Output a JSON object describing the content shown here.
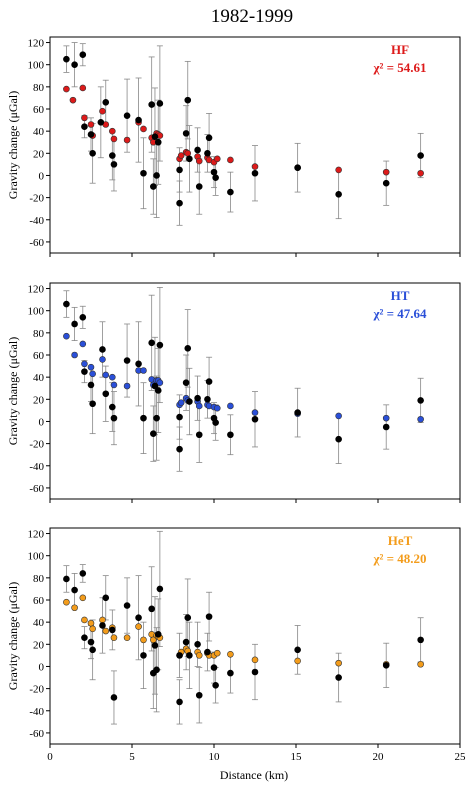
{
  "figure": {
    "title": "1982-1999",
    "xlabel": "Distance (km)",
    "ylabel": "Gravity change (μGal)",
    "xticks": [
      0,
      5,
      10,
      15,
      20,
      25
    ],
    "yticks": [
      -60,
      -40,
      -20,
      0,
      20,
      40,
      60,
      80,
      100,
      120
    ]
  },
  "chart_data": [
    {
      "type": "scatter",
      "panel": "HF",
      "model_label": "HF",
      "chi_label": "χ² = 54.61",
      "model_color": "#dd1a1a",
      "xlim": [
        0,
        25
      ],
      "ylim": [
        -70,
        125
      ],
      "xlabel": "",
      "ylabel": "Gravity change (μGal)",
      "grid": false,
      "observed": [
        {
          "x": 1.0,
          "y": 105,
          "err": 12
        },
        {
          "x": 1.5,
          "y": 100,
          "err": 20
        },
        {
          "x": 2.0,
          "y": 109,
          "err": 10
        },
        {
          "x": 2.1,
          "y": 44,
          "err": 10
        },
        {
          "x": 2.5,
          "y": 37,
          "err": 15
        },
        {
          "x": 2.6,
          "y": 20,
          "err": 27
        },
        {
          "x": 3.1,
          "y": 48,
          "err": 32
        },
        {
          "x": 3.4,
          "y": 66,
          "err": 20
        },
        {
          "x": 3.8,
          "y": 18,
          "err": 22
        },
        {
          "x": 3.9,
          "y": 10,
          "err": 24
        },
        {
          "x": 4.7,
          "y": 54,
          "err": 33
        },
        {
          "x": 5.4,
          "y": 50,
          "err": 38
        },
        {
          "x": 5.7,
          "y": 2,
          "err": 32
        },
        {
          "x": 6.2,
          "y": 64,
          "err": 43
        },
        {
          "x": 6.3,
          "y": -10,
          "err": 25
        },
        {
          "x": 6.4,
          "y": 35,
          "err": 44
        },
        {
          "x": 6.5,
          "y": 0,
          "err": 38
        },
        {
          "x": 6.6,
          "y": 30,
          "err": 38
        },
        {
          "x": 6.7,
          "y": 65,
          "err": 52
        },
        {
          "x": 7.9,
          "y": -25,
          "err": 20
        },
        {
          "x": 7.9,
          "y": 5,
          "err": 20
        },
        {
          "x": 8.3,
          "y": 38,
          "err": 25
        },
        {
          "x": 8.4,
          "y": 68,
          "err": 35
        },
        {
          "x": 8.5,
          "y": 15,
          "err": 30
        },
        {
          "x": 9.0,
          "y": 23,
          "err": 20
        },
        {
          "x": 9.1,
          "y": -10,
          "err": 25
        },
        {
          "x": 9.6,
          "y": 20,
          "err": 17
        },
        {
          "x": 9.7,
          "y": 34,
          "err": 22
        },
        {
          "x": 10.0,
          "y": 3,
          "err": 14
        },
        {
          "x": 10.1,
          "y": -2,
          "err": 16
        },
        {
          "x": 11.0,
          "y": -15,
          "err": 18
        },
        {
          "x": 12.5,
          "y": 2,
          "err": 25
        },
        {
          "x": 15.1,
          "y": 7,
          "err": 22
        },
        {
          "x": 17.6,
          "y": -17,
          "err": 22
        },
        {
          "x": 20.5,
          "y": -7,
          "err": 20
        },
        {
          "x": 22.6,
          "y": 18,
          "err": 20
        }
      ],
      "model": [
        {
          "x": 1.0,
          "y": 78
        },
        {
          "x": 1.4,
          "y": 68
        },
        {
          "x": 2.0,
          "y": 79
        },
        {
          "x": 2.1,
          "y": 52
        },
        {
          "x": 2.5,
          "y": 46
        },
        {
          "x": 2.6,
          "y": 36
        },
        {
          "x": 3.2,
          "y": 58
        },
        {
          "x": 3.4,
          "y": 46
        },
        {
          "x": 3.8,
          "y": 40
        },
        {
          "x": 3.9,
          "y": 33
        },
        {
          "x": 4.7,
          "y": 32
        },
        {
          "x": 5.4,
          "y": 48
        },
        {
          "x": 5.7,
          "y": 42
        },
        {
          "x": 6.2,
          "y": 34
        },
        {
          "x": 6.3,
          "y": 30
        },
        {
          "x": 6.5,
          "y": 38
        },
        {
          "x": 6.6,
          "y": 37
        },
        {
          "x": 6.7,
          "y": 36
        },
        {
          "x": 7.9,
          "y": 15
        },
        {
          "x": 8.0,
          "y": 18
        },
        {
          "x": 8.3,
          "y": 21
        },
        {
          "x": 8.4,
          "y": 20
        },
        {
          "x": 9.0,
          "y": 17
        },
        {
          "x": 9.1,
          "y": 13
        },
        {
          "x": 9.6,
          "y": 16
        },
        {
          "x": 9.7,
          "y": 14
        },
        {
          "x": 10.0,
          "y": 12
        },
        {
          "x": 10.2,
          "y": 15
        },
        {
          "x": 11.0,
          "y": 14
        },
        {
          "x": 12.5,
          "y": 8
        },
        {
          "x": 15.1,
          "y": 7
        },
        {
          "x": 17.6,
          "y": 5
        },
        {
          "x": 20.5,
          "y": 3
        },
        {
          "x": 22.6,
          "y": 2
        }
      ]
    },
    {
      "type": "scatter",
      "panel": "HT",
      "model_label": "HT",
      "chi_label": "χ² = 47.64",
      "model_color": "#2a4fd8",
      "xlim": [
        0,
        25
      ],
      "ylim": [
        -70,
        125
      ],
      "xlabel": "",
      "ylabel": "Gravity change (μGal)",
      "grid": false,
      "observed": [
        {
          "x": 1.0,
          "y": 106,
          "err": 12
        },
        {
          "x": 1.5,
          "y": 88,
          "err": 15
        },
        {
          "x": 2.0,
          "y": 94,
          "err": 10
        },
        {
          "x": 2.1,
          "y": 45,
          "err": 10
        },
        {
          "x": 2.5,
          "y": 33,
          "err": 15
        },
        {
          "x": 2.6,
          "y": 16,
          "err": 27
        },
        {
          "x": 3.2,
          "y": 65,
          "err": 25
        },
        {
          "x": 3.4,
          "y": 25,
          "err": 25
        },
        {
          "x": 3.8,
          "y": 13,
          "err": 22
        },
        {
          "x": 3.9,
          "y": 3,
          "err": 24
        },
        {
          "x": 4.7,
          "y": 55,
          "err": 33
        },
        {
          "x": 5.4,
          "y": 52,
          "err": 38
        },
        {
          "x": 5.7,
          "y": 3,
          "err": 32
        },
        {
          "x": 6.2,
          "y": 71,
          "err": 43
        },
        {
          "x": 6.3,
          "y": -11,
          "err": 25
        },
        {
          "x": 6.4,
          "y": 32,
          "err": 44
        },
        {
          "x": 6.5,
          "y": 3,
          "err": 38
        },
        {
          "x": 6.6,
          "y": 28,
          "err": 38
        },
        {
          "x": 6.7,
          "y": 69,
          "err": 52
        },
        {
          "x": 7.9,
          "y": -25,
          "err": 20
        },
        {
          "x": 7.9,
          "y": 4,
          "err": 20
        },
        {
          "x": 8.3,
          "y": 35,
          "err": 25
        },
        {
          "x": 8.4,
          "y": 66,
          "err": 35
        },
        {
          "x": 8.5,
          "y": 18,
          "err": 30
        },
        {
          "x": 9.0,
          "y": 21,
          "err": 20
        },
        {
          "x": 9.1,
          "y": -12,
          "err": 25
        },
        {
          "x": 9.6,
          "y": 20,
          "err": 17
        },
        {
          "x": 9.7,
          "y": 36,
          "err": 22
        },
        {
          "x": 10.0,
          "y": 3,
          "err": 14
        },
        {
          "x": 10.1,
          "y": -1,
          "err": 16
        },
        {
          "x": 11.0,
          "y": -12,
          "err": 18
        },
        {
          "x": 12.5,
          "y": 2,
          "err": 25
        },
        {
          "x": 15.1,
          "y": 8,
          "err": 22
        },
        {
          "x": 17.6,
          "y": -16,
          "err": 22
        },
        {
          "x": 20.5,
          "y": -5,
          "err": 20
        },
        {
          "x": 22.6,
          "y": 19,
          "err": 20
        }
      ],
      "model": [
        {
          "x": 1.0,
          "y": 77
        },
        {
          "x": 1.5,
          "y": 60
        },
        {
          "x": 2.0,
          "y": 70
        },
        {
          "x": 2.1,
          "y": 52
        },
        {
          "x": 2.5,
          "y": 49
        },
        {
          "x": 2.6,
          "y": 43
        },
        {
          "x": 3.2,
          "y": 56
        },
        {
          "x": 3.4,
          "y": 42
        },
        {
          "x": 3.8,
          "y": 40
        },
        {
          "x": 3.9,
          "y": 33
        },
        {
          "x": 4.7,
          "y": 32
        },
        {
          "x": 5.4,
          "y": 46
        },
        {
          "x": 5.7,
          "y": 46
        },
        {
          "x": 6.2,
          "y": 38
        },
        {
          "x": 6.3,
          "y": 33
        },
        {
          "x": 6.5,
          "y": 37
        },
        {
          "x": 6.6,
          "y": 37
        },
        {
          "x": 6.7,
          "y": 35
        },
        {
          "x": 7.9,
          "y": 15
        },
        {
          "x": 8.0,
          "y": 17
        },
        {
          "x": 8.3,
          "y": 21
        },
        {
          "x": 8.4,
          "y": 19
        },
        {
          "x": 9.0,
          "y": 18
        },
        {
          "x": 9.1,
          "y": 14
        },
        {
          "x": 9.6,
          "y": 15
        },
        {
          "x": 9.7,
          "y": 14
        },
        {
          "x": 10.0,
          "y": 13
        },
        {
          "x": 10.2,
          "y": 12
        },
        {
          "x": 11.0,
          "y": 14
        },
        {
          "x": 12.5,
          "y": 8
        },
        {
          "x": 15.1,
          "y": 7
        },
        {
          "x": 17.6,
          "y": 5
        },
        {
          "x": 20.5,
          "y": 3
        },
        {
          "x": 22.6,
          "y": 2
        }
      ]
    },
    {
      "type": "scatter",
      "panel": "HeT",
      "model_label": "HeT",
      "chi_label": "χ² = 48.20",
      "model_color": "#f39c1b",
      "xlim": [
        0,
        25
      ],
      "ylim": [
        -70,
        125
      ],
      "xlabel": "Distance (km)",
      "ylabel": "Gravity change (μGal)",
      "grid": false,
      "observed": [
        {
          "x": 1.0,
          "y": 79,
          "err": 12
        },
        {
          "x": 1.5,
          "y": 69,
          "err": 15
        },
        {
          "x": 2.0,
          "y": 84,
          "err": 8
        },
        {
          "x": 2.1,
          "y": 26,
          "err": 10
        },
        {
          "x": 2.5,
          "y": 22,
          "err": 15
        },
        {
          "x": 2.6,
          "y": 15,
          "err": 27
        },
        {
          "x": 3.2,
          "y": 37,
          "err": 25
        },
        {
          "x": 3.4,
          "y": 62,
          "err": 20
        },
        {
          "x": 3.8,
          "y": 33,
          "err": 18
        },
        {
          "x": 3.9,
          "y": -28,
          "err": 24
        },
        {
          "x": 4.7,
          "y": 55,
          "err": 25
        },
        {
          "x": 5.4,
          "y": 44,
          "err": 38
        },
        {
          "x": 5.7,
          "y": 10,
          "err": 30
        },
        {
          "x": 6.2,
          "y": 52,
          "err": 38
        },
        {
          "x": 6.3,
          "y": -6,
          "err": 32
        },
        {
          "x": 6.4,
          "y": 19,
          "err": 44
        },
        {
          "x": 6.5,
          "y": -3,
          "err": 38
        },
        {
          "x": 6.6,
          "y": 29,
          "err": 32
        },
        {
          "x": 6.7,
          "y": 70,
          "err": 52
        },
        {
          "x": 7.9,
          "y": -32,
          "err": 20
        },
        {
          "x": 7.9,
          "y": 10,
          "err": 20
        },
        {
          "x": 8.3,
          "y": 22,
          "err": 25
        },
        {
          "x": 8.4,
          "y": 44,
          "err": 35
        },
        {
          "x": 8.5,
          "y": 10,
          "err": 30
        },
        {
          "x": 9.0,
          "y": 20,
          "err": 20
        },
        {
          "x": 9.1,
          "y": -26,
          "err": 25
        },
        {
          "x": 9.6,
          "y": 13,
          "err": 17
        },
        {
          "x": 9.7,
          "y": 45,
          "err": 22
        },
        {
          "x": 10.0,
          "y": -1,
          "err": 14
        },
        {
          "x": 10.1,
          "y": -17,
          "err": 16
        },
        {
          "x": 11.0,
          "y": -6,
          "err": 18
        },
        {
          "x": 12.5,
          "y": -5,
          "err": 25
        },
        {
          "x": 15.1,
          "y": 15,
          "err": 22
        },
        {
          "x": 17.6,
          "y": -10,
          "err": 22
        },
        {
          "x": 20.5,
          "y": 1,
          "err": 20
        },
        {
          "x": 22.6,
          "y": 24,
          "err": 20
        }
      ],
      "model": [
        {
          "x": 1.0,
          "y": 58
        },
        {
          "x": 1.5,
          "y": 53
        },
        {
          "x": 2.0,
          "y": 62
        },
        {
          "x": 2.1,
          "y": 42
        },
        {
          "x": 2.5,
          "y": 39
        },
        {
          "x": 2.6,
          "y": 34
        },
        {
          "x": 3.2,
          "y": 42
        },
        {
          "x": 3.4,
          "y": 32
        },
        {
          "x": 3.8,
          "y": 35
        },
        {
          "x": 3.9,
          "y": 26
        },
        {
          "x": 4.7,
          "y": 26
        },
        {
          "x": 5.4,
          "y": 36
        },
        {
          "x": 5.7,
          "y": 24
        },
        {
          "x": 6.2,
          "y": 29
        },
        {
          "x": 6.3,
          "y": 24
        },
        {
          "x": 6.5,
          "y": 28
        },
        {
          "x": 6.6,
          "y": 27
        },
        {
          "x": 6.7,
          "y": 26
        },
        {
          "x": 7.9,
          "y": 10
        },
        {
          "x": 8.0,
          "y": 13
        },
        {
          "x": 8.3,
          "y": 16
        },
        {
          "x": 8.4,
          "y": 14
        },
        {
          "x": 9.0,
          "y": 13
        },
        {
          "x": 9.1,
          "y": 10
        },
        {
          "x": 9.6,
          "y": 12
        },
        {
          "x": 9.7,
          "y": 10
        },
        {
          "x": 10.0,
          "y": 10
        },
        {
          "x": 10.2,
          "y": 12
        },
        {
          "x": 11.0,
          "y": 11
        },
        {
          "x": 12.5,
          "y": 6
        },
        {
          "x": 15.1,
          "y": 5
        },
        {
          "x": 17.6,
          "y": 3
        },
        {
          "x": 20.5,
          "y": 2
        },
        {
          "x": 22.6,
          "y": 2
        }
      ]
    }
  ]
}
